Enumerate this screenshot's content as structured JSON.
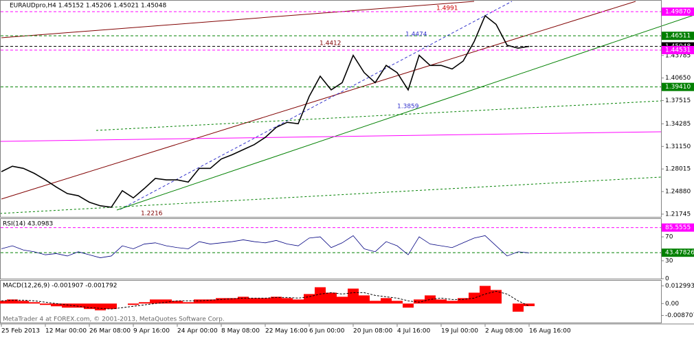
{
  "chart_data": [
    {
      "type": "line",
      "title": "EURAUDpro,H4  1.45152 1.45206 1.45021 1.45048",
      "color": "#000000",
      "categories": [
        "25 Feb 2013",
        null,
        null,
        null,
        "12 Mar 00:00",
        null,
        null,
        null,
        "26 Mar 08:00",
        null,
        null,
        null,
        "9 Apr 16:00",
        null,
        null,
        null,
        "24 Apr 00:00",
        null,
        null,
        null,
        "8 May 08:00",
        null,
        null,
        null,
        "22 May 16:00",
        null,
        null,
        null,
        "6 Jun 00:00",
        null,
        null,
        null,
        "20 Jun 08:00",
        null,
        null,
        null,
        "4 Jul 16:00",
        null,
        null,
        null,
        "19 Jul 00:00",
        null,
        null,
        null,
        "2 Aug 08:00",
        null,
        null,
        null,
        "16 Aug 16:00"
      ],
      "values": [
        1.2764,
        1.284,
        1.281,
        1.274,
        1.265,
        1.255,
        1.246,
        1.243,
        1.234,
        1.229,
        1.227,
        1.25,
        1.24,
        1.253,
        1.267,
        1.265,
        1.265,
        1.262,
        1.281,
        1.281,
        1.294,
        1.3,
        1.307,
        1.314,
        1.324,
        1.338,
        1.345,
        1.343,
        1.381,
        1.409,
        1.39,
        1.4,
        1.438,
        1.414,
        1.4,
        1.424,
        1.414,
        1.39,
        1.438,
        1.424,
        1.424,
        1.419,
        1.43,
        1.457,
        1.493,
        1.481,
        1.452,
        1.448,
        1.45048
      ],
      "ylim": [
        1.2136,
        1.5139
      ],
      "yticks": [
        1.43785,
        {
          "value": 1.4065,
          "label": "1.40650"
        },
        1.37515,
        1.34285,
        {
          "value": 1.3115,
          "label": "1.31150"
        },
        1.28015,
        {
          "value": 1.2488,
          "label": "1.24880"
        },
        1.21745
      ],
      "levels": [
        {
          "value": 1.4987,
          "label": "1.49870",
          "color": "#ff00ff"
        },
        {
          "value": 1.46511,
          "color": "#008000"
        },
        {
          "value": 1.45048,
          "color": "#000000"
        },
        {
          "value": 1.44531,
          "color": "#ff00ff"
        },
        {
          "value": {
            "value": 1.3941,
            "label": "1.39410"
          },
          "color": "#008000"
        }
      ],
      "annotations": [
        "1.4991",
        "1.4474",
        "1.4412",
        "1.3859",
        "1.2216"
      ],
      "footer": "MetaTrader 4 at FOREX.com, © 2001-2013, MetaQuotes Software Corp."
    },
    {
      "type": "line",
      "title": "RSI(14) 43.0983",
      "color": "#000080",
      "values": [
        50,
        55,
        48,
        45,
        40,
        42,
        38,
        45,
        40,
        35,
        38,
        55,
        50,
        58,
        60,
        55,
        52,
        50,
        62,
        58,
        60,
        62,
        65,
        62,
        60,
        64,
        58,
        55,
        68,
        70,
        52,
        60,
        72,
        50,
        45,
        62,
        55,
        40,
        70,
        58,
        55,
        52,
        60,
        68,
        72,
        55,
        38,
        45,
        43.0983
      ],
      "ylim": [
        0,
        100
      ],
      "yticks": [
        70,
        30,
        0
      ],
      "levels": [
        {
          "value": 85.5555,
          "color": "#ff00ff"
        },
        {
          "value": 43.47826,
          "color": "#008000"
        }
      ]
    },
    {
      "type": "bar",
      "title": "MACD(12,26,9) -0.001907 -0.001792",
      "color": "#ff0000",
      "values": [
        0.002,
        0.003,
        0.002,
        0.001,
        -0.001,
        -0.002,
        -0.003,
        -0.003,
        -0.004,
        -0.005,
        -0.004,
        0.0,
        -0.001,
        0.001,
        0.003,
        0.003,
        0.002,
        0.001,
        0.003,
        0.003,
        0.004,
        0.004,
        0.005,
        0.004,
        0.004,
        0.005,
        0.004,
        0.003,
        0.007,
        0.012,
        0.008,
        0.005,
        0.011,
        0.006,
        0.002,
        0.004,
        0.002,
        -0.003,
        0.003,
        0.006,
        0.003,
        0.002,
        0.004,
        0.008,
        0.013,
        0.01,
        0.0,
        -0.006,
        -0.001907
      ],
      "signal": {
        "color": "#000000",
        "values": [
          0.002,
          0.0025,
          0.0025,
          0.002,
          0.001,
          0.0,
          -0.001,
          -0.002,
          -0.003,
          -0.0035,
          -0.004,
          -0.003,
          -0.002,
          -0.001,
          0.0,
          0.001,
          0.002,
          0.002,
          0.002,
          0.0025,
          0.003,
          0.0035,
          0.004,
          0.004,
          0.004,
          0.0045,
          0.0045,
          0.004,
          0.005,
          0.007,
          0.008,
          0.007,
          0.008,
          0.008,
          0.006,
          0.005,
          0.004,
          0.002,
          0.001,
          0.003,
          0.004,
          0.003,
          0.003,
          0.004,
          0.007,
          0.009,
          0.007,
          0.002,
          -0.001792
        ]
      },
      "ylim": [
        -0.014,
        0.0168
      ],
      "yticks": [
        0.012993,
        {
          "value": 0,
          "label": "0.00"
        },
        -0.008707
      ]
    }
  ]
}
